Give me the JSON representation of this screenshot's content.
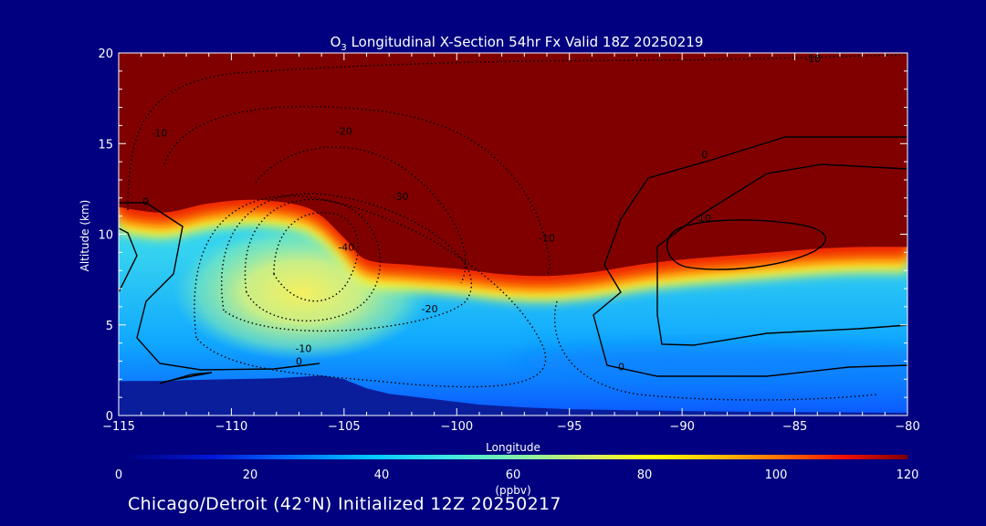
{
  "chart_data": {
    "type": "contour",
    "title": {
      "prefix": "O",
      "subscript": "3",
      "rest": " Longitudinal X-Section 54hr  Fx Valid 18Z 20250219"
    },
    "xlabel": "Longitude",
    "ylabel": "Altitude (km)",
    "xlim": [
      -115,
      -80
    ],
    "ylim": [
      0,
      20
    ],
    "x_ticks": [
      -115,
      -110,
      -105,
      -100,
      -95,
      -90,
      -85,
      -80
    ],
    "x_tick_labels": [
      "−115",
      "−110",
      "−105",
      "−100",
      "−95",
      "−90",
      "−85",
      "−80"
    ],
    "y_ticks": [
      0,
      5,
      10,
      15,
      20
    ],
    "y_tick_labels": [
      "0",
      "5",
      "10",
      "15",
      "20"
    ],
    "colorbar": {
      "label": "(ppbv)",
      "range": [
        0,
        120
      ],
      "ticks": [
        0,
        20,
        40,
        60,
        80,
        100,
        120
      ],
      "tick_labels": [
        "0",
        "20",
        "40",
        "60",
        "80",
        "100",
        "120"
      ]
    },
    "colors": {
      "background": "#000080",
      "stratosphere": "#800000",
      "terrain": "#0a1e9c",
      "text": "#ffffff"
    },
    "tropopause_km": [
      [
        -115,
        11.5
      ],
      [
        -113,
        11.2
      ],
      [
        -111,
        11.7
      ],
      [
        -109,
        11.9
      ],
      [
        -107,
        11.6
      ],
      [
        -106,
        11.0
      ],
      [
        -105,
        9.8
      ],
      [
        -104,
        8.6
      ],
      [
        -102,
        8.3
      ],
      [
        -100,
        8.1
      ],
      [
        -98,
        7.8
      ],
      [
        -96,
        7.7
      ],
      [
        -94,
        7.9
      ],
      [
        -92,
        8.3
      ],
      [
        -90,
        8.6
      ],
      [
        -88,
        8.8
      ],
      [
        -86,
        9.0
      ],
      [
        -84,
        9.2
      ],
      [
        -82,
        9.3
      ],
      [
        -80,
        9.3
      ]
    ],
    "terrain_km": [
      [
        -115,
        1.9
      ],
      [
        -114,
        1.9
      ],
      [
        -113,
        1.9
      ],
      [
        -112,
        1.95
      ],
      [
        -110,
        2.0
      ],
      [
        -108,
        2.05
      ],
      [
        -106,
        2.2
      ],
      [
        -105,
        2.0
      ],
      [
        -104,
        1.5
      ],
      [
        -103,
        1.2
      ],
      [
        -102,
        1.05
      ],
      [
        -101,
        0.9
      ],
      [
        -100,
        0.75
      ],
      [
        -99,
        0.6
      ],
      [
        -97,
        0.45
      ],
      [
        -95,
        0.35
      ],
      [
        -93,
        0.3
      ],
      [
        -90,
        0.25
      ],
      [
        -87,
        0.2
      ],
      [
        -84,
        0.18
      ],
      [
        -80,
        0.15
      ]
    ],
    "contour_labels": [
      {
        "text": "-10",
        "lon": -113.2,
        "alt": 15.4
      },
      {
        "text": "-20",
        "lon": -105.0,
        "alt": 15.5
      },
      {
        "text": "-30",
        "lon": -102.5,
        "alt": 11.9
      },
      {
        "text": "-40",
        "lon": -104.9,
        "alt": 9.1
      },
      {
        "text": "-20",
        "lon": -101.2,
        "alt": 5.7
      },
      {
        "text": "-10",
        "lon": -106.8,
        "alt": 3.5
      },
      {
        "text": "0",
        "lon": -107.0,
        "alt": 2.8
      },
      {
        "text": "0",
        "lon": -113.8,
        "alt": 11.6
      },
      {
        "text": "-10",
        "lon": -96.0,
        "alt": 9.6
      },
      {
        "text": "-10",
        "lon": -84.2,
        "alt": 19.5
      },
      {
        "text": "0",
        "lon": -89.0,
        "alt": 14.2
      },
      {
        "text": "10",
        "lon": -89.0,
        "alt": 10.7
      },
      {
        "text": "0",
        "lon": -92.7,
        "alt": 2.5
      }
    ]
  },
  "footer": "Chicago/Detroit (42°N) Initialized 12Z 20250217"
}
